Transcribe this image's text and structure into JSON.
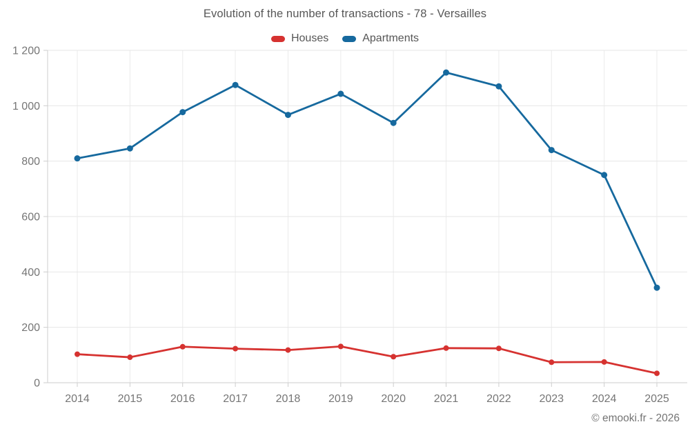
{
  "header": {
    "title": "Evolution of the number of transactions - 78 - Versailles"
  },
  "legend": {
    "items": [
      {
        "label": "Houses",
        "color": "#d63230"
      },
      {
        "label": "Apartments",
        "color": "#16699e"
      }
    ]
  },
  "footer": {
    "credit": "© emooki.fr - 2026"
  },
  "colors": {
    "background": "#ffffff",
    "grid_vertical": "#ebebeb",
    "grid_horizontal": "#e6e6e6",
    "axis": "#cdcdcd",
    "tick_label": "#757575",
    "title_text": "#575757",
    "legend_text": "#565656",
    "credit_text": "#747474",
    "houses": "#d63230",
    "apartments": "#16699e"
  },
  "chart_data": {
    "type": "line",
    "title": "Evolution of the number of transactions - 78 - Versailles",
    "categories": [
      "2014",
      "2015",
      "2016",
      "2017",
      "2018",
      "2019",
      "2020",
      "2021",
      "2022",
      "2023",
      "2024",
      "2025"
    ],
    "series": [
      {
        "name": "Houses",
        "color": "#d63230",
        "values": [
          103,
          92,
          130,
          123,
          118,
          131,
          94,
          125,
          124,
          74,
          75,
          34
        ]
      },
      {
        "name": "Apartments",
        "color": "#16699e",
        "values": [
          810,
          846,
          977,
          1075,
          967,
          1043,
          938,
          1120,
          1070,
          840,
          750,
          343
        ]
      }
    ],
    "xlabel": "",
    "ylabel": "",
    "ylim": [
      0,
      1200
    ],
    "yticks": [
      0,
      200,
      400,
      600,
      800,
      1000,
      1200
    ],
    "ytick_labels": [
      "0",
      "200",
      "400",
      "600",
      "800",
      "1 000",
      "1 200"
    ],
    "grid": true,
    "legend_position": "top",
    "markers": true
  }
}
